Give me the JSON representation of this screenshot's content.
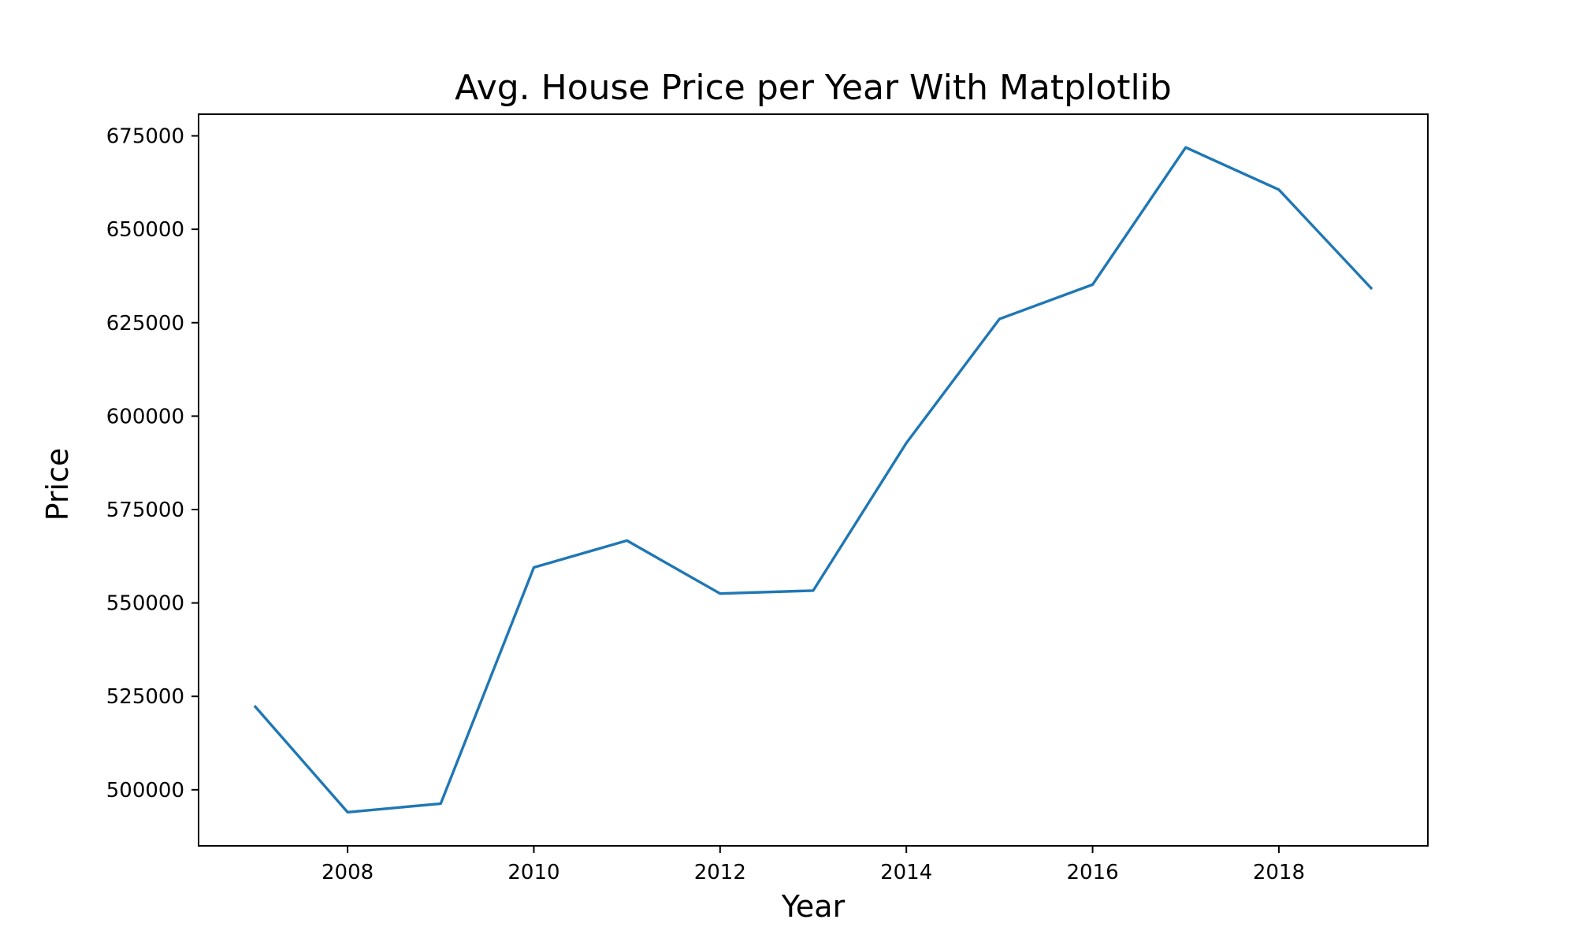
{
  "chart_data": {
    "type": "line",
    "title": "Avg. House Price per Year With Matplotlib",
    "xlabel": "Year",
    "ylabel": "Price",
    "x": [
      2007,
      2008,
      2009,
      2010,
      2011,
      2012,
      2013,
      2014,
      2015,
      2016,
      2017,
      2018,
      2019
    ],
    "series": [
      {
        "values": [
          522500,
          494000,
          496300,
          559500,
          566700,
          552500,
          553300,
          592800,
          626000,
          635200,
          671900,
          660600,
          634000
        ],
        "color": "#1f77b4"
      }
    ],
    "xlim": [
      2006.4,
      2019.6
    ],
    "ylim": [
      485000,
      680800
    ],
    "xticks": [
      2008,
      2010,
      2012,
      2014,
      2016,
      2018
    ],
    "xtick_labels": [
      "2008",
      "2010",
      "2012",
      "2014",
      "2016",
      "2018"
    ],
    "yticks": [
      500000,
      525000,
      550000,
      575000,
      600000,
      625000,
      650000,
      675000
    ],
    "ytick_labels": [
      "500000",
      "525000",
      "550000",
      "575000",
      "600000",
      "625000",
      "650000",
      "675000"
    ],
    "grid": false,
    "legend": "none"
  }
}
